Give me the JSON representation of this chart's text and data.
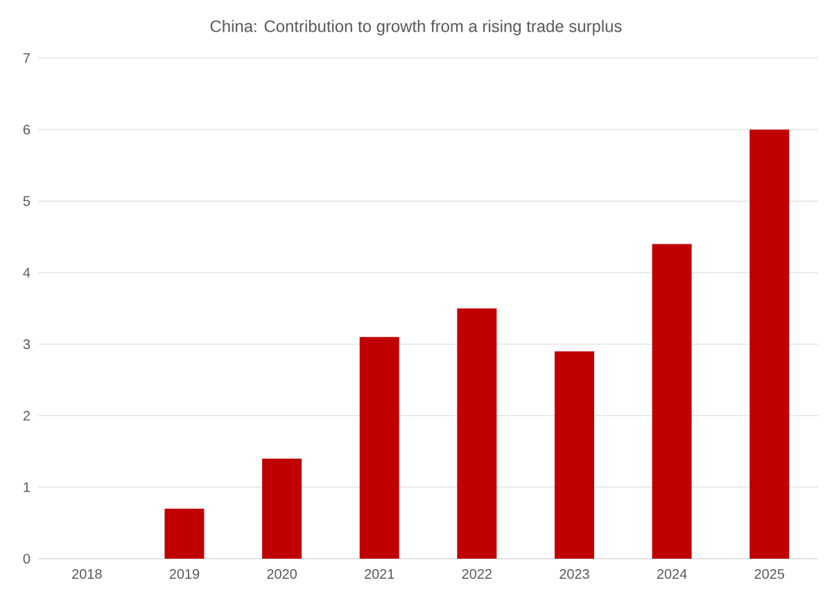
{
  "chart_data": {
    "type": "bar",
    "title": "China: Contribution to growth from a rising trade surplus",
    "categories": [
      "2018",
      "2019",
      "2020",
      "2021",
      "2022",
      "2023",
      "2024",
      "2025"
    ],
    "values": [
      0,
      0.7,
      1.4,
      3.1,
      3.5,
      2.9,
      4.4,
      6.0
    ],
    "color": "#c00000",
    "ylim": [
      0,
      7
    ],
    "yticks": [
      0,
      1,
      2,
      3,
      4,
      5,
      6,
      7
    ],
    "grid": "y"
  }
}
